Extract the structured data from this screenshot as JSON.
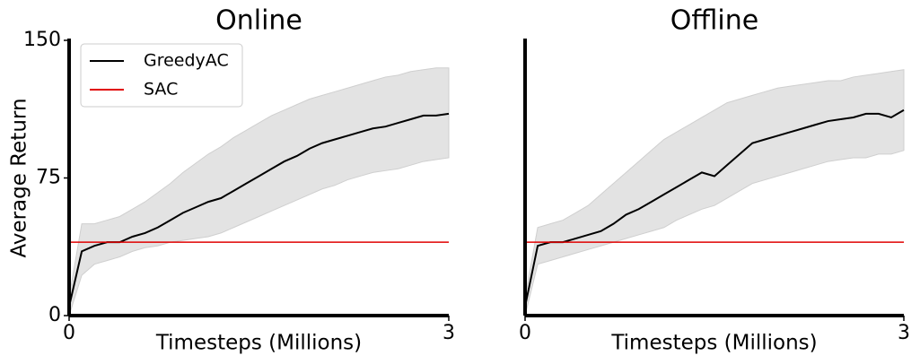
{
  "chart_data": [
    {
      "type": "line",
      "title": "Online",
      "xlabel": "Timesteps (Millions)",
      "ylabel": "Average Return",
      "x": [
        0,
        0.1,
        0.2,
        0.3,
        0.4,
        0.5,
        0.6,
        0.7,
        0.8,
        0.9,
        1.0,
        1.1,
        1.2,
        1.3,
        1.4,
        1.5,
        1.6,
        1.7,
        1.8,
        1.9,
        2.0,
        2.1,
        2.2,
        2.3,
        2.4,
        2.5,
        2.6,
        2.7,
        2.8,
        2.9,
        3.0
      ],
      "xlim": [
        0,
        3
      ],
      "xticks": [
        0,
        3
      ],
      "ylim": [
        0,
        150
      ],
      "yticks": [
        0,
        75,
        150
      ],
      "legend": "upper left",
      "band": {
        "color": "#e3e3e3",
        "upper": [
          10,
          50,
          50,
          52,
          54,
          58,
          62,
          67,
          72,
          78,
          83,
          88,
          92,
          97,
          101,
          105,
          109,
          112,
          115,
          118,
          120,
          122,
          124,
          126,
          128,
          130,
          131,
          133,
          134,
          135,
          135
        ],
        "lower": [
          0,
          22,
          28,
          30,
          32,
          35,
          37,
          38,
          40,
          41,
          42,
          43,
          45,
          48,
          51,
          54,
          57,
          60,
          63,
          66,
          69,
          71,
          74,
          76,
          78,
          79,
          80,
          82,
          84,
          85,
          86
        ]
      },
      "series": [
        {
          "name": "GreedyAC",
          "color": "#000000",
          "values": [
            5,
            35,
            38,
            40,
            40,
            43,
            45,
            48,
            52,
            56,
            59,
            62,
            64,
            68,
            72,
            76,
            80,
            84,
            87,
            91,
            94,
            96,
            98,
            100,
            102,
            103,
            105,
            107,
            109,
            109,
            110
          ]
        },
        {
          "name": "SAC",
          "color": "#e00000",
          "values": [
            40,
            40,
            40,
            40,
            40,
            40,
            40,
            40,
            40,
            40,
            40,
            40,
            40,
            40,
            40,
            40,
            40,
            40,
            40,
            40,
            40,
            40,
            40,
            40,
            40,
            40,
            40,
            40,
            40,
            40,
            40
          ]
        }
      ]
    },
    {
      "type": "line",
      "title": "Offline",
      "xlabel": "Timesteps (Millions)",
      "x": [
        0,
        0.1,
        0.2,
        0.3,
        0.4,
        0.5,
        0.6,
        0.7,
        0.8,
        0.9,
        1.0,
        1.1,
        1.2,
        1.3,
        1.4,
        1.5,
        1.6,
        1.7,
        1.8,
        1.9,
        2.0,
        2.1,
        2.2,
        2.3,
        2.4,
        2.5,
        2.6,
        2.7,
        2.8,
        2.9,
        3.0
      ],
      "xlim": [
        0,
        3
      ],
      "xticks": [
        0,
        3
      ],
      "ylim": [
        0,
        150
      ],
      "legend": false,
      "band": {
        "color": "#e3e3e3",
        "upper": [
          10,
          48,
          50,
          52,
          56,
          60,
          66,
          72,
          78,
          84,
          90,
          96,
          100,
          104,
          108,
          112,
          116,
          118,
          120,
          122,
          124,
          125,
          126,
          127,
          128,
          128,
          130,
          131,
          132,
          133,
          134
        ],
        "lower": [
          0,
          28,
          30,
          32,
          34,
          36,
          38,
          40,
          42,
          44,
          46,
          48,
          52,
          55,
          58,
          60,
          64,
          68,
          72,
          74,
          76,
          78,
          80,
          82,
          84,
          85,
          86,
          86,
          88,
          88,
          90
        ]
      },
      "series": [
        {
          "name": "GreedyAC",
          "color": "#000000",
          "values": [
            5,
            38,
            40,
            40,
            42,
            44,
            46,
            50,
            55,
            58,
            62,
            66,
            70,
            74,
            78,
            76,
            82,
            88,
            94,
            96,
            98,
            100,
            102,
            104,
            106,
            107,
            108,
            110,
            110,
            108,
            112
          ]
        },
        {
          "name": "SAC",
          "color": "#e00000",
          "values": [
            40,
            40,
            40,
            40,
            40,
            40,
            40,
            40,
            40,
            40,
            40,
            40,
            40,
            40,
            40,
            40,
            40,
            40,
            40,
            40,
            40,
            40,
            40,
            40,
            40,
            40,
            40,
            40,
            40,
            40,
            40
          ]
        }
      ]
    }
  ]
}
